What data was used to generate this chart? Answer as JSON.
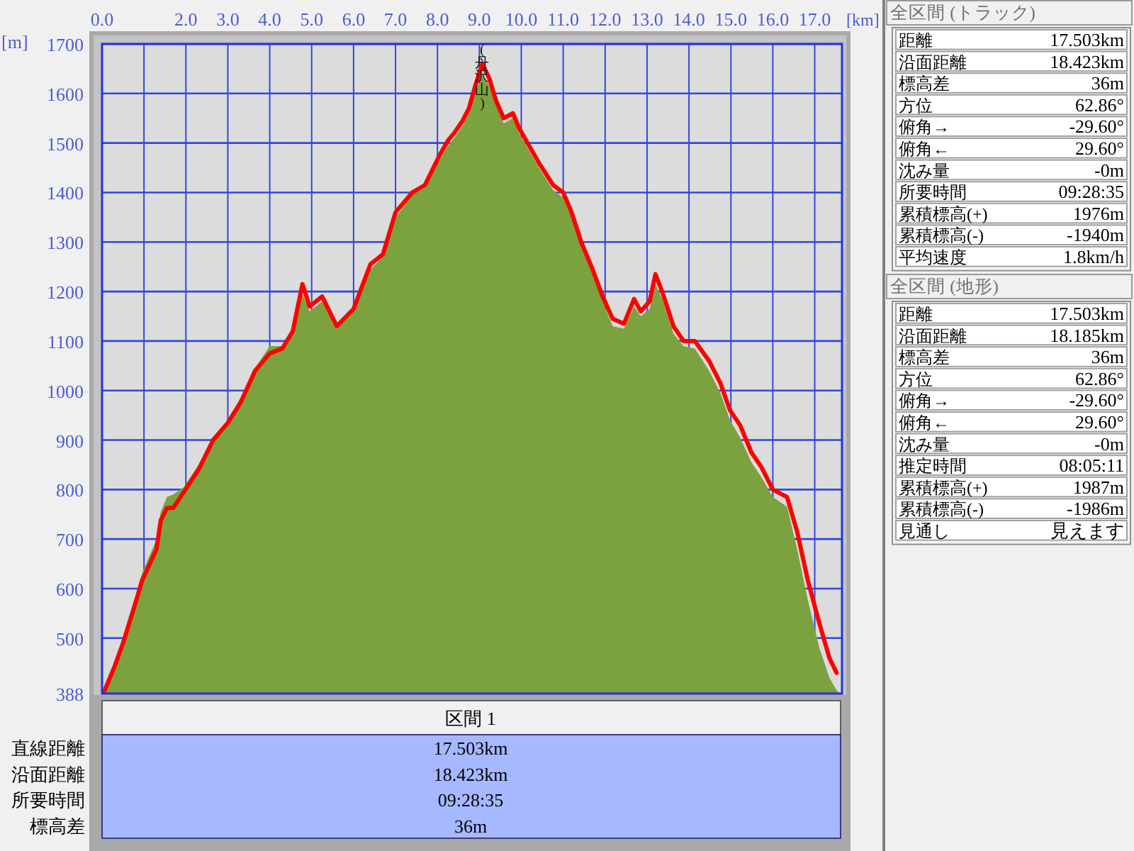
{
  "chart_data": [
    {
      "type": "area",
      "xlabel": "[km]",
      "ylabel": "[m]",
      "xlim": [
        0,
        17.65
      ],
      "ylim": [
        388,
        1700
      ],
      "xticks": [
        {
          "value": 0,
          "label": "0.0"
        },
        {
          "value": 1,
          "label": null
        },
        {
          "value": 2,
          "label": "2.0"
        },
        {
          "value": 3,
          "label": "3.0"
        },
        {
          "value": 4,
          "label": "4.0"
        },
        {
          "value": 5,
          "label": "5.0"
        },
        {
          "value": 6,
          "label": "6.0"
        },
        {
          "value": 7,
          "label": "7.0"
        },
        {
          "value": 8,
          "label": "8.0"
        },
        {
          "value": 9,
          "label": "9.0"
        },
        {
          "value": 10,
          "label": "10.0"
        },
        {
          "value": 11,
          "label": "11.0"
        },
        {
          "value": 12,
          "label": "12.0"
        },
        {
          "value": 13,
          "label": "13.0"
        },
        {
          "value": 14,
          "label": "14.0"
        },
        {
          "value": 15,
          "label": "15.0"
        },
        {
          "value": 16,
          "label": "16.0"
        },
        {
          "value": 17,
          "label": "17.0"
        }
      ],
      "yticks": [
        388,
        500,
        600,
        700,
        800,
        900,
        1000,
        1100,
        1200,
        1300,
        1400,
        1500,
        1600,
        1700
      ],
      "grid": true,
      "series": [
        {
          "type": "area",
          "color": "#7ba23f",
          "x": [
            0,
            0.05,
            0.3,
            0.5,
            0.85,
            0.95,
            1.3,
            1.4,
            1.55,
            1.7,
            1.95,
            2.3,
            2.65,
            3.0,
            3.3,
            3.65,
            4.0,
            4.3,
            4.55,
            4.78,
            4.95,
            5.25,
            5.6,
            6.0,
            6.4,
            6.7,
            7.0,
            7.4,
            7.7,
            8.05,
            8.25,
            8.4,
            8.6,
            8.75,
            8.9,
            9.07,
            9.24,
            9.4,
            9.58,
            9.8,
            9.95,
            10.15,
            10.42,
            10.76,
            11.0,
            11.2,
            11.43,
            11.7,
            11.94,
            12.18,
            12.45,
            12.69,
            12.85,
            13.06,
            13.2,
            13.36,
            13.63,
            13.87,
            14.14,
            14.48,
            14.75,
            14.98,
            15.22,
            15.49,
            15.73,
            16.0,
            16.34,
            16.58,
            16.84,
            17.11,
            17.35,
            17.52,
            17.6
          ],
          "values": [
            388,
            395,
            445,
            500,
            600,
            630,
            700,
            755,
            785,
            790,
            805,
            850,
            905,
            940,
            985,
            1045,
            1090,
            1090,
            1115,
            1195,
            1160,
            1180,
            1125,
            1160,
            1245,
            1270,
            1350,
            1395,
            1410,
            1465,
            1495,
            1510,
            1535,
            1560,
            1600,
            1640,
            1615,
            1575,
            1540,
            1550,
            1520,
            1490,
            1450,
            1405,
            1390,
            1350,
            1290,
            1235,
            1180,
            1130,
            1125,
            1170,
            1150,
            1165,
            1215,
            1185,
            1115,
            1090,
            1085,
            1040,
            995,
            940,
            905,
            855,
            825,
            785,
            765,
            680,
            575,
            480,
            420,
            395,
            388
          ]
        },
        {
          "type": "line",
          "color": "#ff0000",
          "x": [
            0.05,
            0.3,
            0.5,
            0.85,
            0.95,
            1.3,
            1.4,
            1.55,
            1.7,
            1.95,
            2.3,
            2.65,
            3.0,
            3.3,
            3.65,
            4.0,
            4.3,
            4.55,
            4.78,
            4.95,
            5.25,
            5.6,
            6.0,
            6.4,
            6.7,
            7.0,
            7.4,
            7.7,
            8.05,
            8.25,
            8.4,
            8.6,
            8.75,
            8.9,
            9.07,
            9.24,
            9.4,
            9.58,
            9.8,
            9.95,
            10.15,
            10.42,
            10.76,
            11.0,
            11.2,
            11.43,
            11.7,
            11.94,
            12.18,
            12.45,
            12.69,
            12.85,
            13.06,
            13.2,
            13.36,
            13.63,
            13.87,
            14.14,
            14.48,
            14.75,
            14.98,
            15.22,
            15.49,
            15.73,
            16.0,
            16.34,
            16.58,
            16.84,
            17.11,
            17.35,
            17.52
          ],
          "values": [
            392,
            443,
            490,
            586,
            615,
            680,
            738,
            763,
            763,
            795,
            840,
            900,
            935,
            975,
            1040,
            1075,
            1085,
            1120,
            1215,
            1170,
            1190,
            1130,
            1165,
            1255,
            1275,
            1360,
            1400,
            1415,
            1475,
            1505,
            1520,
            1545,
            1570,
            1615,
            1660,
            1630,
            1585,
            1550,
            1560,
            1530,
            1500,
            1460,
            1415,
            1400,
            1360,
            1300,
            1245,
            1190,
            1145,
            1135,
            1185,
            1160,
            1180,
            1235,
            1200,
            1130,
            1100,
            1100,
            1060,
            1015,
            960,
            930,
            875,
            845,
            800,
            785,
            715,
            615,
            530,
            460,
            430
          ]
        }
      ],
      "annotations": [
        {
          "text": "(丹沢山)",
          "x": 9.07,
          "y": 1660
        }
      ]
    },
    {
      "type": "other",
      "title": "全区間 (トラック)",
      "annotations": [
        "距離",
        "17.503km",
        "沿面距離",
        "18.423km",
        "標高差",
        "36m",
        "方位",
        "62.86°",
        "俯角→",
        "-29.60°",
        "俯角←",
        "29.60°",
        "沈み量",
        "-0m",
        "所要時間",
        "09:28:35",
        "累積標高(+)",
        "1976m",
        "累積標高(-)",
        "-1940m",
        "平均速度",
        "1.8km/h"
      ]
    },
    {
      "type": "other",
      "title": "全区間 (地形)",
      "annotations": [
        "距離",
        "17.503km",
        "沿面距離",
        "18.185km",
        "標高差",
        "36m",
        "方位",
        "62.86°",
        "俯角→",
        "-29.60°",
        "俯角←",
        "29.60°",
        "沈み量",
        "-0m",
        "推定時間",
        "08:05:11",
        "累積標高(+)",
        "1987m",
        "累積標高(-)",
        "-1986m",
        "見通し",
        "見えます"
      ]
    },
    {
      "type": "other",
      "title": "区間 1",
      "annotations": [
        "直線距離",
        "17.503km",
        "沿面距離",
        "18.423km",
        "所要時間",
        "09:28:35",
        "標高差",
        "36m"
      ]
    }
  ]
}
